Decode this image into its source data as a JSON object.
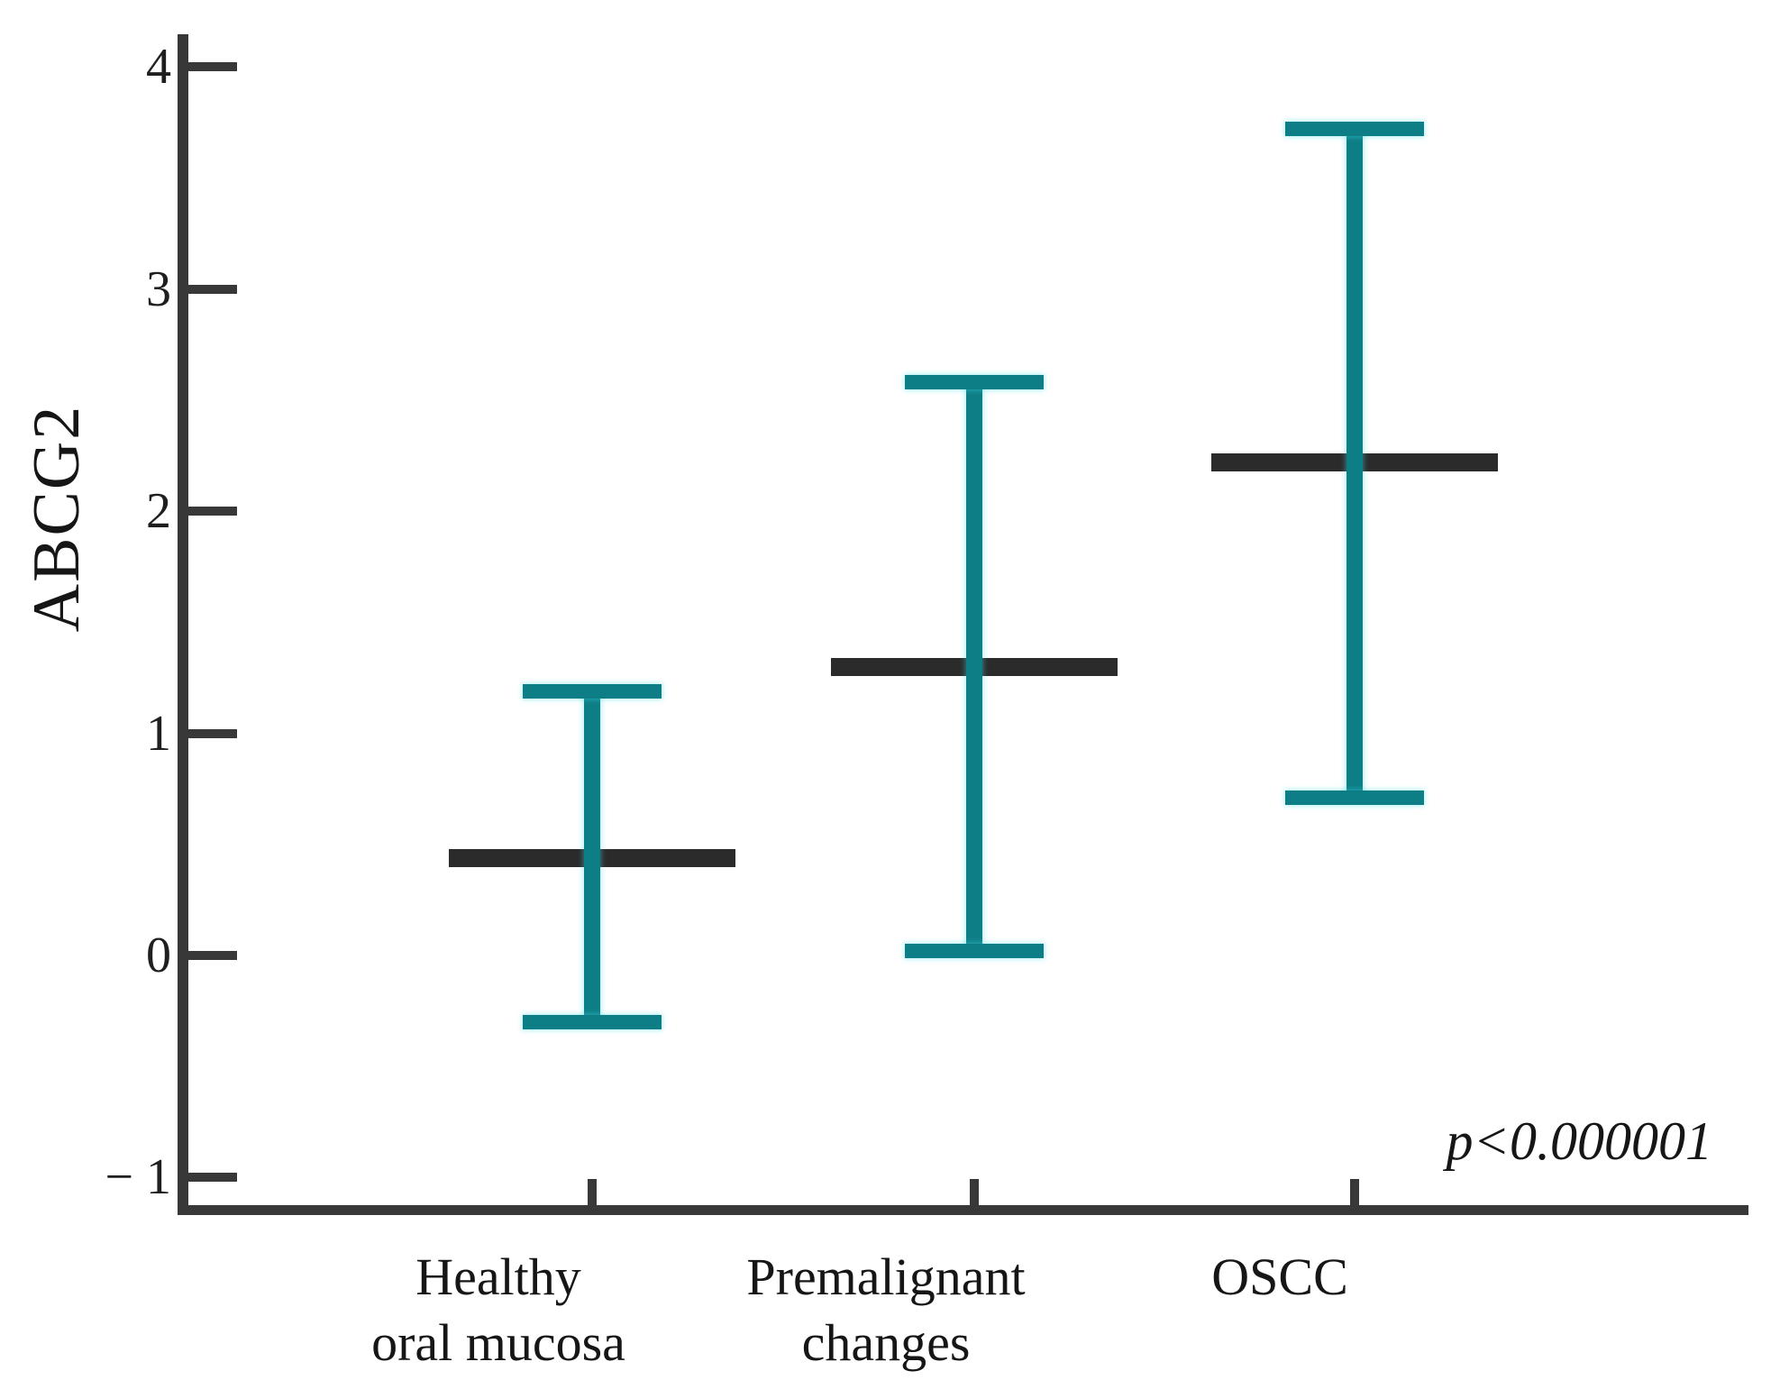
{
  "chart_data": {
    "type": "errorbar",
    "title": "",
    "xlabel": "",
    "ylabel": "ABCG2",
    "annotation": "p<0.000001",
    "grid": false,
    "legend": null,
    "ylim": [
      -1.15,
      4.15
    ],
    "y_ticks": [
      {
        "value": 4,
        "label": "4"
      },
      {
        "value": 3,
        "label": "3"
      },
      {
        "value": 2,
        "label": "2"
      },
      {
        "value": 1,
        "label": "1"
      },
      {
        "value": 0,
        "label": "0"
      },
      {
        "value": -1,
        "label": "− 1"
      }
    ],
    "categories": [
      {
        "lines": [
          "Healthy",
          "oral mucosa"
        ]
      },
      {
        "lines": [
          "Premalignant",
          "changes"
        ]
      },
      {
        "lines": [
          "OSCC"
        ]
      }
    ],
    "points": [
      {
        "category": "Healthy oral mucosa",
        "mean": 0.44,
        "upper": 1.19,
        "lower": -0.3
      },
      {
        "category": "Premalignant changes",
        "mean": 1.3,
        "upper": 2.58,
        "lower": 0.02
      },
      {
        "category": "OSCC",
        "mean": 2.22,
        "upper": 3.72,
        "lower": 0.71
      }
    ],
    "colors": {
      "whisker": "#0e7e86",
      "mean_line": "#2b2b2b",
      "axis": "#383838",
      "background": "#ffffff"
    }
  }
}
